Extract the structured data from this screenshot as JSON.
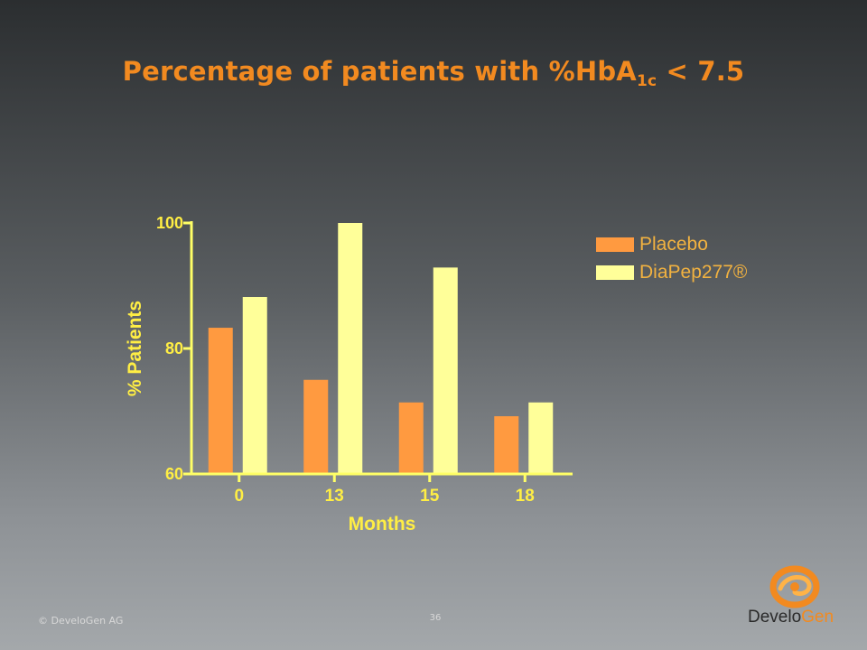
{
  "slide": {
    "title_main": "Percentage of patients with %HbA",
    "title_sub": "1c",
    "title_tail": " < 7.5",
    "copyright": "© DeveloGen AG",
    "page_number": "36"
  },
  "logo": {
    "text_dark": "Develo",
    "text_accent": "Gen"
  },
  "chart_data": {
    "type": "bar",
    "title": "Percentage of patients with %HbA1c < 7.5",
    "xlabel": "Months",
    "ylabel": "% Patients",
    "categories": [
      "0",
      "13",
      "15",
      "18"
    ],
    "ylim": [
      60,
      100
    ],
    "yticks": [
      60,
      80,
      100
    ],
    "grid": false,
    "legend_position": "top-right",
    "series": [
      {
        "name": "Placebo",
        "color": "#ff9a40",
        "values": [
          83.3,
          75.0,
          71.4,
          69.2
        ]
      },
      {
        "name": "DiaPep277®",
        "color": "#ffff99",
        "values": [
          88.2,
          100.0,
          92.9,
          71.4
        ]
      }
    ]
  },
  "colors": {
    "axis": "#ffff66",
    "tick_label": "#ffee44",
    "axis_title": "#ffee44",
    "accent": "#f28a20"
  }
}
